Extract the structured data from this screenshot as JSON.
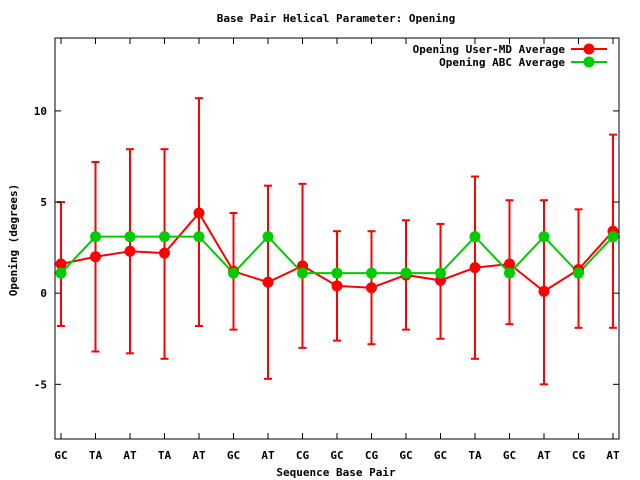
{
  "chart_data": {
    "type": "line",
    "title": "Base Pair Helical Parameter: Opening",
    "xlabel": "Sequence Base Pair",
    "ylabel": "Opening (degrees)",
    "ylim": [
      -8,
      14
    ],
    "yticks": [
      -5,
      0,
      5,
      10
    ],
    "ytick_labels": [
      "-5",
      "0",
      "5",
      "10"
    ],
    "categories": [
      "GC",
      "TA",
      "AT",
      "TA",
      "AT",
      "GC",
      "AT",
      "CG",
      "GC",
      "CG",
      "GC",
      "GC",
      "TA",
      "GC",
      "AT",
      "CG",
      "AT"
    ],
    "legend_position": "top-right",
    "series": [
      {
        "name": "Opening User-MD Average",
        "color": "#ff0000",
        "values": [
          1.6,
          2.0,
          2.3,
          2.2,
          4.4,
          1.2,
          0.6,
          1.5,
          0.4,
          0.3,
          1.0,
          0.7,
          1.4,
          1.6,
          0.1,
          1.3,
          3.4
        ],
        "err_low": [
          -1.8,
          -3.2,
          -3.3,
          -3.6,
          -1.8,
          -2.0,
          -4.7,
          -3.0,
          -2.6,
          -2.8,
          -2.0,
          -2.5,
          -3.6,
          -1.7,
          -5.0,
          -1.9,
          -1.9
        ],
        "err_high": [
          5.0,
          7.2,
          7.9,
          7.9,
          10.7,
          4.4,
          5.9,
          6.0,
          3.4,
          3.4,
          4.0,
          3.8,
          6.4,
          5.1,
          5.1,
          4.6,
          8.7
        ]
      },
      {
        "name": "Opening ABC Average",
        "color": "#00cc00",
        "values": [
          1.1,
          3.1,
          3.1,
          3.1,
          3.1,
          1.1,
          3.1,
          1.1,
          1.1,
          1.1,
          1.1,
          1.1,
          3.1,
          1.1,
          3.1,
          1.1,
          3.1
        ]
      }
    ]
  }
}
